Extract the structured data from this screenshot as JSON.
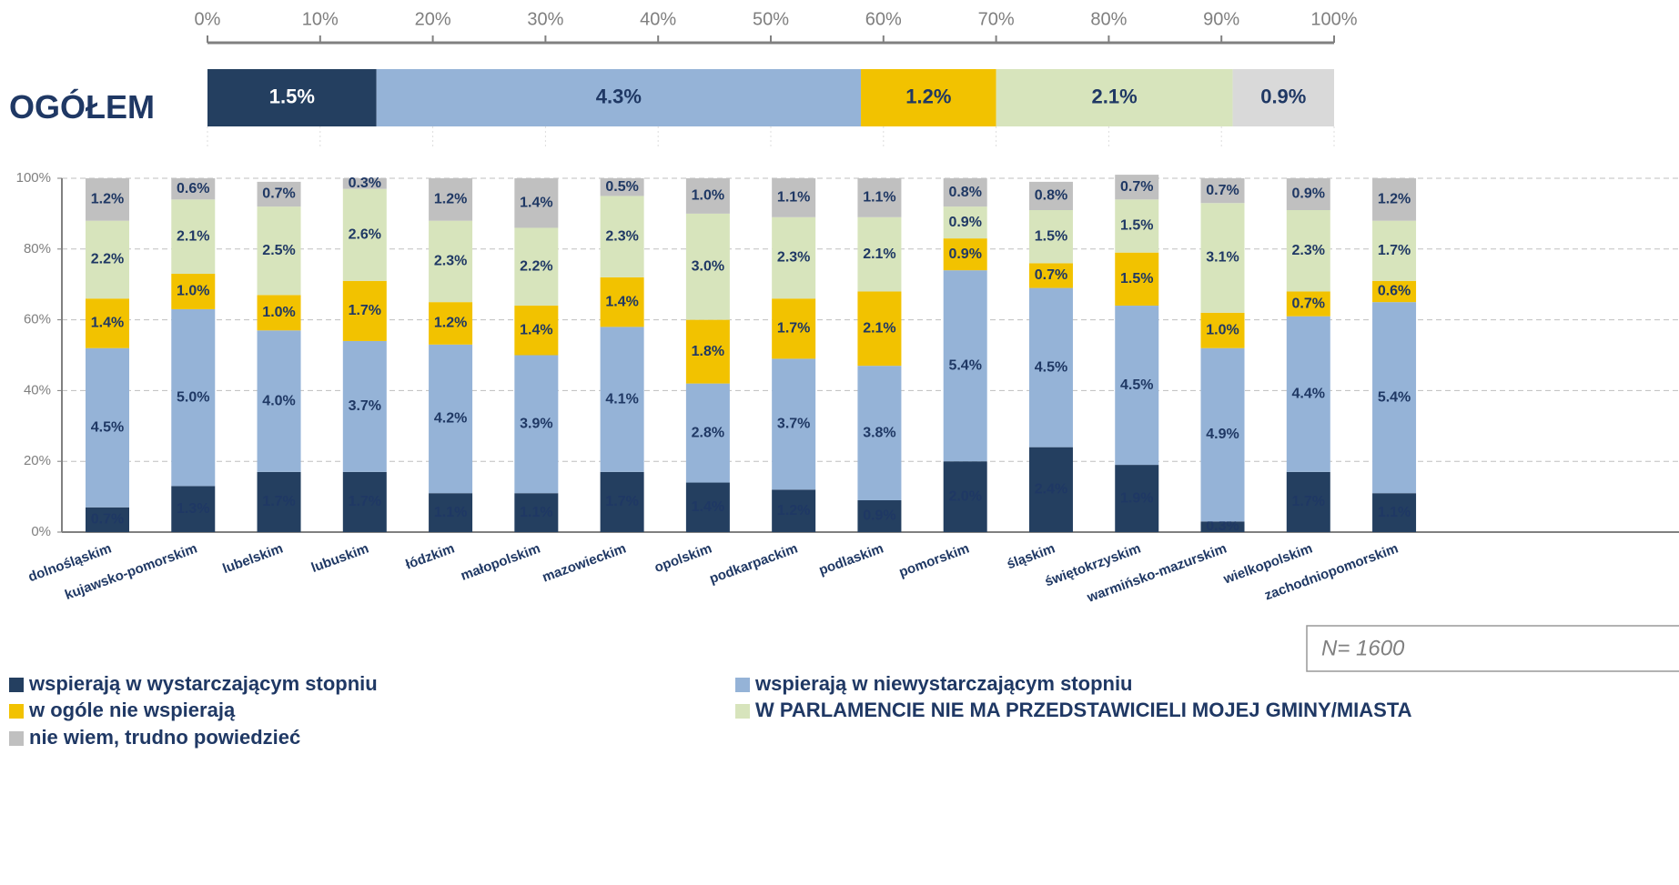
{
  "chart_data": [
    {
      "type": "hbar",
      "categories": [
        "OGÓŁEM"
      ],
      "xlim": [
        0,
        10
      ],
      "xticks": [
        {
          "value": 0,
          "label": "0%"
        },
        {
          "value": 1,
          "label": "10%"
        },
        {
          "value": 2,
          "label": "20%"
        },
        {
          "value": 3,
          "label": "30%"
        },
        {
          "value": 4,
          "label": "40%"
        },
        {
          "value": 5,
          "label": "50%"
        },
        {
          "value": 6,
          "label": "60%"
        },
        {
          "value": 7,
          "label": "70%"
        },
        {
          "value": 8,
          "label": "80%"
        },
        {
          "value": 9,
          "label": "90%"
        },
        {
          "value": 10,
          "label": "100%"
        }
      ],
      "series": [
        {
          "color": "#243f60",
          "values": [
            1.5
          ],
          "value_labels": [
            "1.5%"
          ]
        },
        {
          "color": "#95b3d7",
          "values": [
            4.3
          ],
          "value_labels": [
            "4.3%"
          ]
        },
        {
          "color": "#f2c200",
          "values": [
            1.2
          ],
          "value_labels": [
            "1.2%"
          ]
        },
        {
          "color": "#d7e4bc",
          "values": [
            2.1
          ],
          "value_labels": [
            "2.1%"
          ]
        },
        {
          "color": "#d9d9d9",
          "values": [
            0.9
          ],
          "value_labels": [
            "0.9%"
          ]
        }
      ]
    },
    {
      "type": "bar",
      "categories": [
        "dolnośląskim",
        "kujawsko-pomorskim",
        "lubelskim",
        "lubuskim",
        "łódzkim",
        "małopolskim",
        "mazowieckim",
        "opolskim",
        "podkarpackim",
        "podlaskim",
        "pomorskim",
        "śląskim",
        "świętokrzyskim",
        "warmińsko-mazurskim",
        "wielkopolskim",
        "zachodniopomorskim"
      ],
      "ylim": [
        0,
        10
      ],
      "yticks": [
        {
          "value": 0,
          "label": "0%"
        },
        {
          "value": 2,
          "label": "20%"
        },
        {
          "value": 4,
          "label": "40%"
        },
        {
          "value": 6,
          "label": "60%"
        },
        {
          "value": 8,
          "label": "80%"
        },
        {
          "value": 10,
          "label": "100%"
        }
      ],
      "grid": true,
      "annotation": "N= 1600",
      "series": [
        {
          "name": "wspierają w wystarczającym stopniu",
          "color": "#243f60",
          "values": [
            0.7,
            1.3,
            1.7,
            1.7,
            1.1,
            1.1,
            1.7,
            1.4,
            1.2,
            0.9,
            2.0,
            2.4,
            1.9,
            0.3,
            1.7,
            1.1
          ],
          "value_labels": [
            "0.7%",
            "1.3%",
            "1.7%",
            "1.7%",
            "1.1%",
            "1.1%",
            "1.7%",
            "1.4%",
            "1.2%",
            "0.9%",
            "2.0%",
            "2.4%",
            "1.9%",
            "0.3%",
            "1.7%",
            "1.1%"
          ]
        },
        {
          "name": "wspierają w niewystarczającym stopniu",
          "color": "#95b3d7",
          "values": [
            4.5,
            5.0,
            4.0,
            3.7,
            4.2,
            3.9,
            4.1,
            2.8,
            3.7,
            3.8,
            5.4,
            4.5,
            4.5,
            4.9,
            4.4,
            5.4
          ],
          "value_labels": [
            "4.5%",
            "5.0%",
            "4.0%",
            "3.7%",
            "4.2%",
            "3.9%",
            "4.1%",
            "2.8%",
            "3.7%",
            "3.8%",
            "5.4%",
            "4.5%",
            "4.5%",
            "4.9%",
            "4.4%",
            "5.4%"
          ]
        },
        {
          "name": "w ogóle nie wspierają",
          "color": "#f2c200",
          "values": [
            1.4,
            1.0,
            1.0,
            1.7,
            1.2,
            1.4,
            1.4,
            1.8,
            1.7,
            2.1,
            0.9,
            0.7,
            1.5,
            1.0,
            0.7,
            0.6
          ],
          "value_labels": [
            "1.4%",
            "1.0%",
            "1.0%",
            "1.7%",
            "1.2%",
            "1.4%",
            "1.4%",
            "1.8%",
            "1.7%",
            "2.1%",
            "0.9%",
            "0.7%",
            "1.5%",
            "1.0%",
            "0.7%",
            "0.6%"
          ]
        },
        {
          "name": "W PARLAMENCIE NIE MA PRZEDSTAWICIELI MOJEJ GMINY/MIASTA",
          "color": "#d7e4bc",
          "values": [
            2.2,
            2.1,
            2.5,
            2.6,
            2.3,
            2.2,
            2.3,
            3.0,
            2.3,
            2.1,
            0.9,
            1.5,
            1.5,
            3.1,
            2.3,
            1.7
          ],
          "value_labels": [
            "2.2%",
            "2.1%",
            "2.5%",
            "2.6%",
            "2.3%",
            "2.2%",
            "2.3%",
            "3.0%",
            "2.3%",
            "2.1%",
            "0.9%",
            "1.5%",
            "1.5%",
            "3.1%",
            "2.3%",
            "1.7%"
          ]
        },
        {
          "name": "nie wiem, trudno powiedzieć",
          "color": "#c0c0c0",
          "values": [
            1.2,
            0.6,
            0.7,
            0.3,
            1.2,
            1.4,
            0.5,
            1.0,
            1.1,
            1.1,
            0.8,
            0.8,
            0.7,
            0.7,
            0.9,
            1.2
          ],
          "value_labels": [
            "1.2%",
            "0.6%",
            "0.7%",
            "0.3%",
            "1.2%",
            "1.4%",
            "0.5%",
            "1.0%",
            "1.1%",
            "1.1%",
            "0.8%",
            "0.8%",
            "0.7%",
            "0.7%",
            "0.9%",
            "1.2%"
          ]
        }
      ]
    }
  ]
}
